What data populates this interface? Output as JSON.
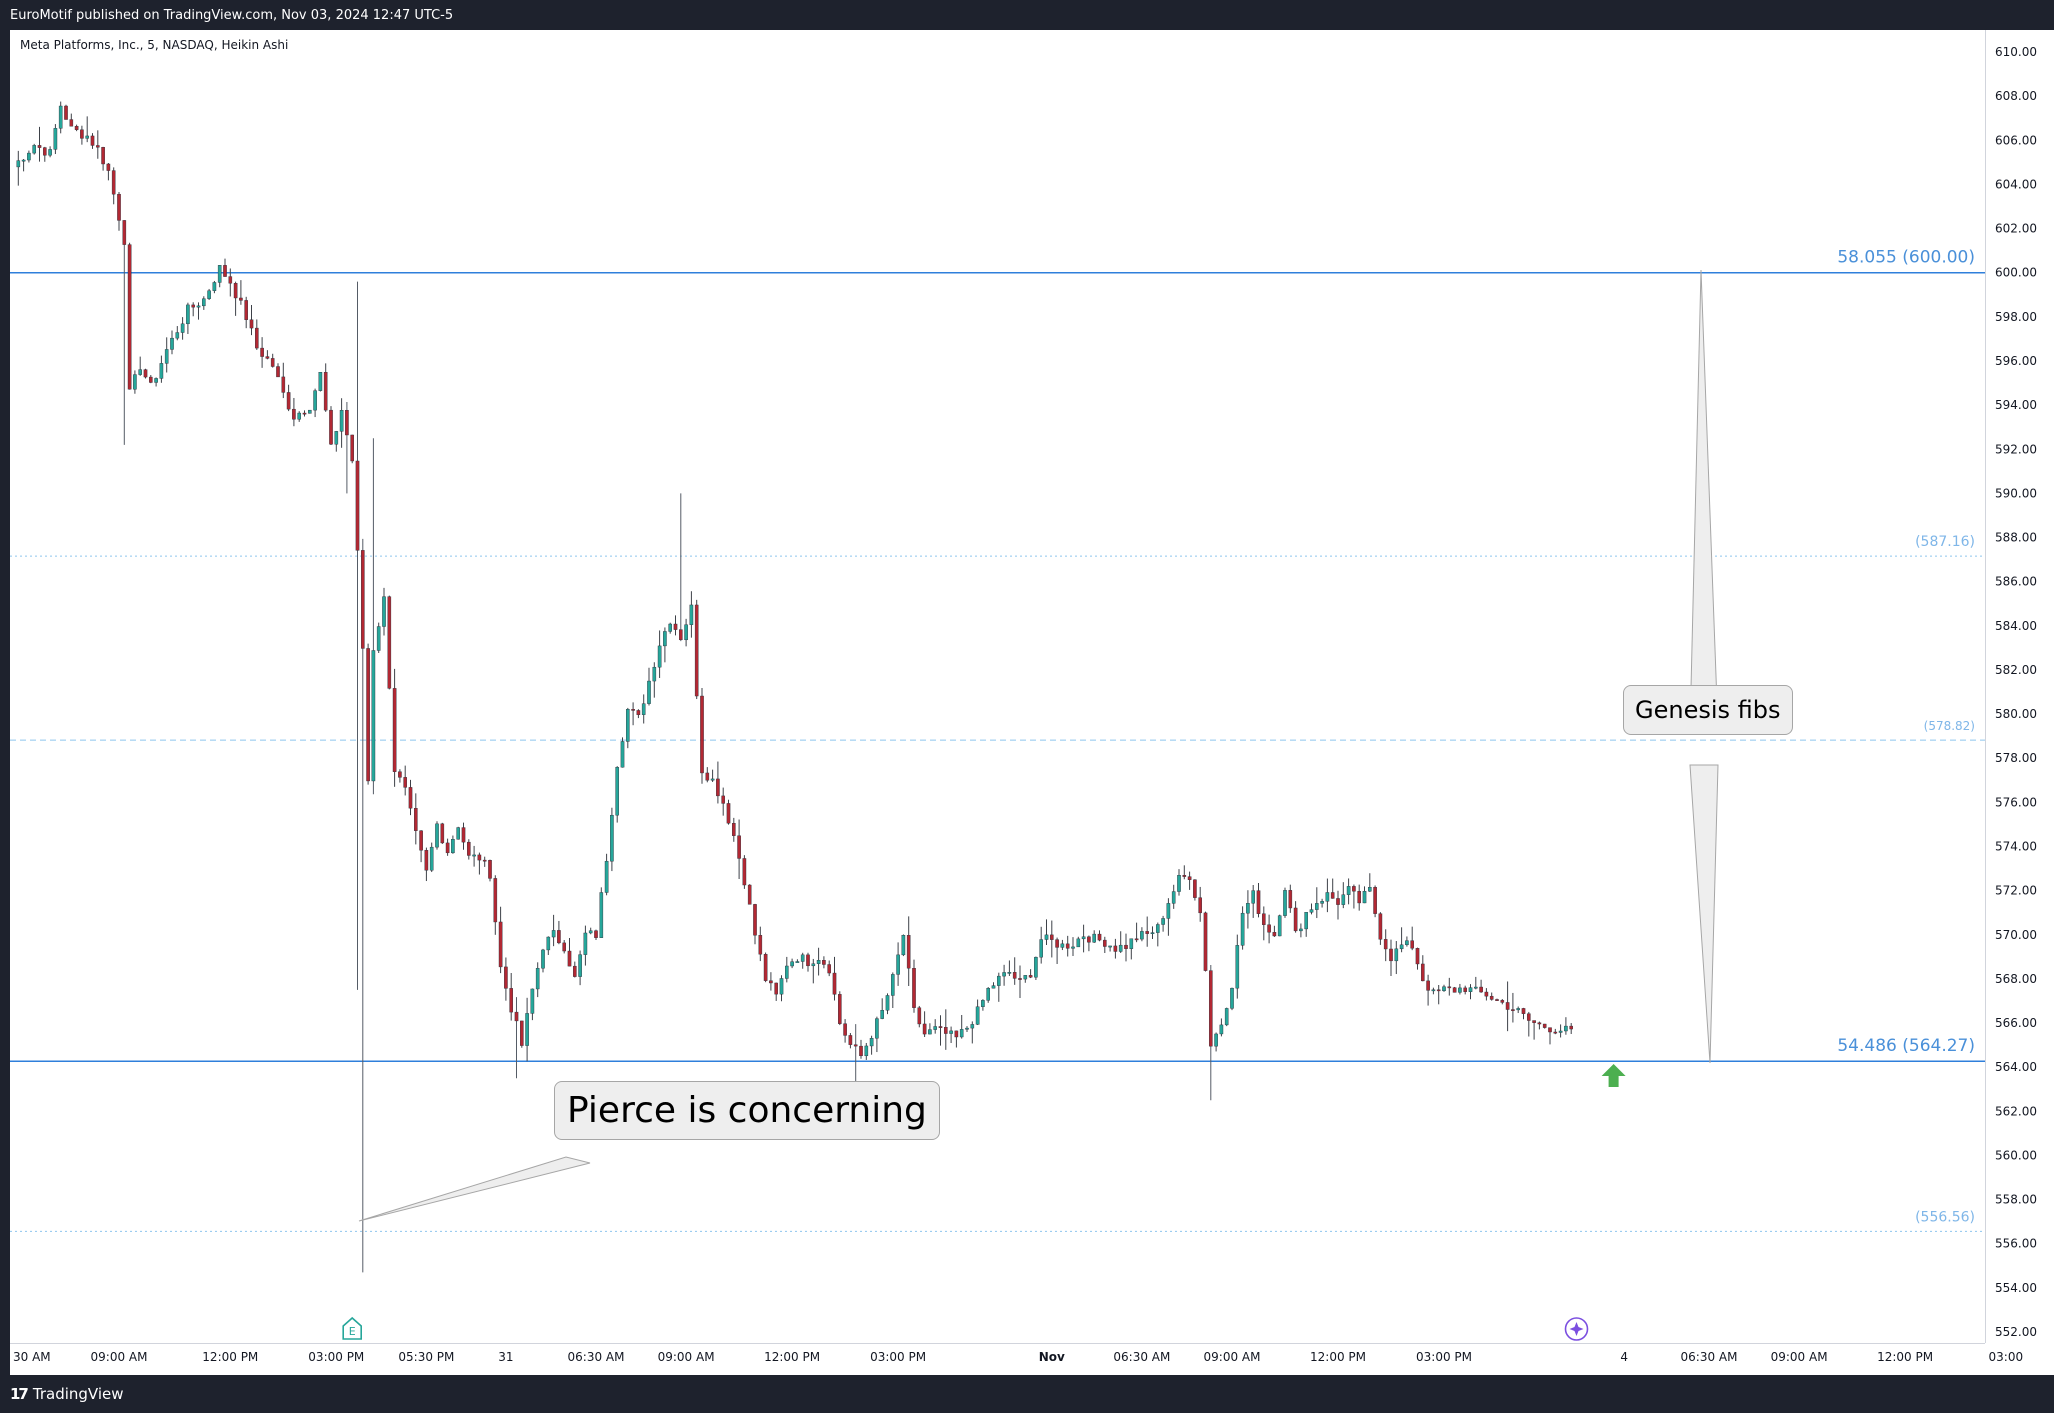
{
  "header": {
    "publisher": "EuroMotif published on TradingView.com, Nov 03, 2024 12:47 UTC-5"
  },
  "symbol": {
    "label": "Meta Platforms, Inc., 5, NASDAQ, Heikin Ashi"
  },
  "footer": {
    "brand": "TradingView"
  },
  "annotations": {
    "pierce": "Pierce is concerning",
    "genesis": "Genesis fibs"
  },
  "colors": {
    "up": "#26a69a",
    "down": "#b22833",
    "fib_line": "#2f7fdb",
    "fib_level_text": "#4a90d9",
    "fib_sub_text": "#7fb6e8",
    "arrow": "#4caf50",
    "earnings_marker": "#26a69a",
    "event_marker": "#7b4fe0"
  },
  "chart_data": {
    "type": "candlestick",
    "style": "Heikin Ashi",
    "symbol": "Meta Platforms, Inc.",
    "exchange": "NASDAQ",
    "interval": "5",
    "ylim": [
      551.5,
      611
    ],
    "y_ticks": [
      "610.00",
      "608.00",
      "606.00",
      "604.00",
      "602.00",
      "600.00",
      "598.00",
      "596.00",
      "594.00",
      "592.00",
      "590.00",
      "588.00",
      "586.00",
      "584.00",
      "582.00",
      "580.00",
      "578.00",
      "576.00",
      "574.00",
      "572.00",
      "570.00",
      "568.00",
      "566.00",
      "564.00",
      "562.00",
      "560.00",
      "558.00",
      "556.00",
      "554.00",
      "552.00"
    ],
    "x_ticks": [
      "30 AM",
      "09:00 AM",
      "12:00 PM",
      "03:00 PM",
      "05:30 PM",
      "31",
      "06:30 AM",
      "09:00 AM",
      "12:00 PM",
      "03:00 PM",
      "Nov",
      "06:30 AM",
      "09:00 AM",
      "12:00 PM",
      "03:00 PM",
      "4",
      "06:30 AM",
      "09:00 AM",
      "12:00 PM",
      "03:00"
    ],
    "x_tick_index": [
      0,
      20,
      41,
      61,
      78,
      93,
      110,
      127,
      147,
      167,
      196,
      213,
      230,
      250,
      270,
      304,
      320,
      337,
      357,
      376
    ],
    "price_path": [
      [
        0,
        604.8
      ],
      [
        4,
        605.8
      ],
      [
        7,
        605.4
      ],
      [
        9,
        607.6
      ],
      [
        11,
        606.5
      ],
      [
        14,
        606.2
      ],
      [
        16,
        605.6
      ],
      [
        18,
        604.6
      ],
      [
        21,
        601.5
      ],
      [
        22,
        594.5
      ],
      [
        24,
        595.8
      ],
      [
        26,
        594.8
      ],
      [
        29,
        596.5
      ],
      [
        33,
        598.3
      ],
      [
        36,
        598.8
      ],
      [
        39,
        600.2
      ],
      [
        41,
        599.6
      ],
      [
        44,
        598.0
      ],
      [
        46,
        596.6
      ],
      [
        49,
        595.8
      ],
      [
        51,
        594.5
      ],
      [
        53,
        593.5
      ],
      [
        56,
        594.0
      ],
      [
        58,
        595.4
      ],
      [
        60,
        592.0
      ],
      [
        62,
        593.8
      ],
      [
        64,
        591.5
      ],
      [
        66,
        583.0
      ],
      [
        67,
        577.0
      ],
      [
        68,
        583.0
      ],
      [
        70,
        585.2
      ],
      [
        72,
        577.5
      ],
      [
        74,
        576.5
      ],
      [
        76,
        574.5
      ],
      [
        78,
        572.8
      ],
      [
        80,
        575.0
      ],
      [
        82,
        573.8
      ],
      [
        84,
        575.0
      ],
      [
        86,
        573.5
      ],
      [
        88,
        573.5
      ],
      [
        90,
        572.8
      ],
      [
        92,
        568.5
      ],
      [
        94,
        566.7
      ],
      [
        96,
        565.0
      ],
      [
        98,
        567.5
      ],
      [
        100,
        569.5
      ],
      [
        102,
        570.0
      ],
      [
        104,
        569.5
      ],
      [
        106,
        568.0
      ],
      [
        108,
        570.0
      ],
      [
        110,
        570.0
      ],
      [
        112,
        573.5
      ],
      [
        114,
        577.8
      ],
      [
        116,
        580.2
      ],
      [
        118,
        579.8
      ],
      [
        120,
        581.5
      ],
      [
        122,
        583.2
      ],
      [
        124,
        584.3
      ],
      [
        126,
        583.5
      ],
      [
        128,
        584.8
      ],
      [
        129,
        581.0
      ],
      [
        130,
        577.5
      ],
      [
        132,
        577.0
      ],
      [
        134,
        576.0
      ],
      [
        136,
        574.5
      ],
      [
        138,
        572.5
      ],
      [
        140,
        570.0
      ],
      [
        142,
        568.0
      ],
      [
        144,
        567.2
      ],
      [
        146,
        568.7
      ],
      [
        148,
        569.0
      ],
      [
        150,
        568.8
      ],
      [
        152,
        569.0
      ],
      [
        154,
        568.5
      ],
      [
        156,
        566.0
      ],
      [
        158,
        565.0
      ],
      [
        160,
        564.5
      ],
      [
        162,
        565.5
      ],
      [
        164,
        566.5
      ],
      [
        166,
        568.0
      ],
      [
        168,
        570.0
      ],
      [
        170,
        566.5
      ],
      [
        172,
        565.5
      ],
      [
        174,
        565.7
      ],
      [
        176,
        565.5
      ],
      [
        178,
        565.3
      ],
      [
        180,
        565.8
      ],
      [
        182,
        566.5
      ],
      [
        184,
        567.5
      ],
      [
        186,
        568.0
      ],
      [
        188,
        568.3
      ],
      [
        190,
        567.8
      ],
      [
        192,
        568.3
      ],
      [
        194,
        569.8
      ],
      [
        196,
        569.7
      ],
      [
        198,
        569.5
      ],
      [
        200,
        569.6
      ],
      [
        202,
        570.0
      ],
      [
        204,
        569.8
      ],
      [
        206,
        569.7
      ],
      [
        208,
        569.4
      ],
      [
        210,
        569.5
      ],
      [
        212,
        569.9
      ],
      [
        214,
        570.0
      ],
      [
        216,
        570.3
      ],
      [
        218,
        571.5
      ],
      [
        220,
        572.5
      ],
      [
        222,
        572.7
      ],
      [
        224,
        571.0
      ],
      [
        225,
        568.5
      ],
      [
        226,
        565.0
      ],
      [
        228,
        566.0
      ],
      [
        230,
        567.8
      ],
      [
        232,
        571.0
      ],
      [
        234,
        571.8
      ],
      [
        236,
        570.5
      ],
      [
        238,
        570.0
      ],
      [
        240,
        572.2
      ],
      [
        242,
        570.0
      ],
      [
        244,
        571.0
      ],
      [
        246,
        571.5
      ],
      [
        248,
        571.8
      ],
      [
        250,
        571.5
      ],
      [
        252,
        572.0
      ],
      [
        254,
        571.5
      ],
      [
        256,
        572.0
      ],
      [
        258,
        570.0
      ],
      [
        260,
        569.0
      ],
      [
        262,
        569.5
      ],
      [
        264,
        569.5
      ],
      [
        266,
        568.0
      ],
      [
        268,
        567.3
      ],
      [
        270,
        567.5
      ],
      [
        272,
        567.5
      ],
      [
        274,
        567.6
      ],
      [
        276,
        567.4
      ],
      [
        278,
        567.3
      ],
      [
        280,
        567.0
      ],
      [
        282,
        566.8
      ],
      [
        284,
        566.5
      ],
      [
        286,
        566.1
      ],
      [
        288,
        565.9
      ],
      [
        290,
        565.8
      ],
      [
        292,
        565.7
      ],
      [
        294,
        565.6
      ]
    ],
    "wicks": [
      {
        "index": 21,
        "low": 592.2
      },
      {
        "index": 63,
        "low": 590.0
      },
      {
        "index": 65,
        "high": 599.6,
        "low": 567.5
      },
      {
        "index": 66,
        "low": 554.7
      },
      {
        "index": 68,
        "high": 592.5
      },
      {
        "index": 95,
        "low": 563.5
      },
      {
        "index": 126,
        "high": 590.0
      },
      {
        "index": 159,
        "low": 563.1
      },
      {
        "index": 226,
        "low": 562.5
      }
    ],
    "fib_levels": [
      {
        "price": 600.0,
        "label": "58.055 (600.00)",
        "style": "solid"
      },
      {
        "price": 587.16,
        "label": "(587.16)",
        "style": "dotted"
      },
      {
        "price": 578.82,
        "label": "(578.82)",
        "style": "dashed"
      },
      {
        "price": 564.27,
        "label": "54.486 (564.27)",
        "style": "solid"
      },
      {
        "price": 556.56,
        "label": "(556.56)",
        "style": "dotted"
      }
    ],
    "markers": [
      {
        "type": "earnings",
        "index": 64,
        "text": "E"
      },
      {
        "type": "event",
        "index": 295
      },
      {
        "type": "arrow-up",
        "index": 302,
        "price": 563.6
      }
    ]
  }
}
